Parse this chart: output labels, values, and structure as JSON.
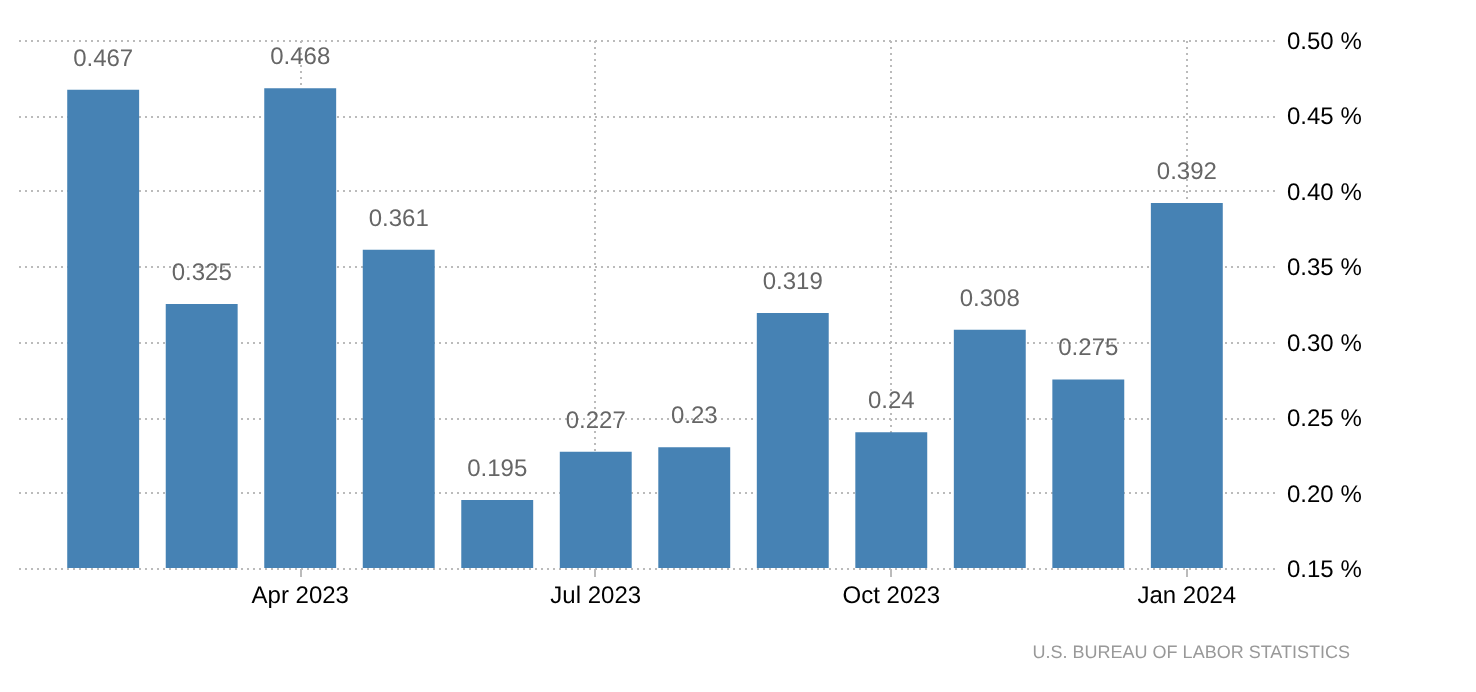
{
  "chart_data": {
    "type": "bar",
    "categories": [
      null,
      null,
      "Apr 2023",
      null,
      null,
      "Jul 2023",
      null,
      null,
      "Oct 2023",
      null,
      null,
      "Jan 2024"
    ],
    "values": [
      0.467,
      0.325,
      0.468,
      0.361,
      0.195,
      0.227,
      0.23,
      0.319,
      0.24,
      0.308,
      0.275,
      0.392
    ],
    "color": "#4682b4",
    "ylim": [
      0.15,
      0.5
    ],
    "yticks": [
      {
        "value": 0.15,
        "label": "0.15 %"
      },
      {
        "value": 0.2,
        "label": "0.20 %"
      },
      {
        "value": 0.25,
        "label": "0.25 %"
      },
      {
        "value": 0.3,
        "label": "0.30 %"
      },
      {
        "value": 0.35,
        "label": "0.35 %"
      },
      {
        "value": 0.4,
        "label": "0.40 %"
      },
      {
        "value": 0.45,
        "label": "0.45 %"
      },
      {
        "value": 0.5,
        "label": "0.50 %"
      }
    ],
    "grid": true,
    "data_labels": true,
    "annotations": [
      "U.S. BUREAU OF LABOR STATISTICS"
    ]
  }
}
